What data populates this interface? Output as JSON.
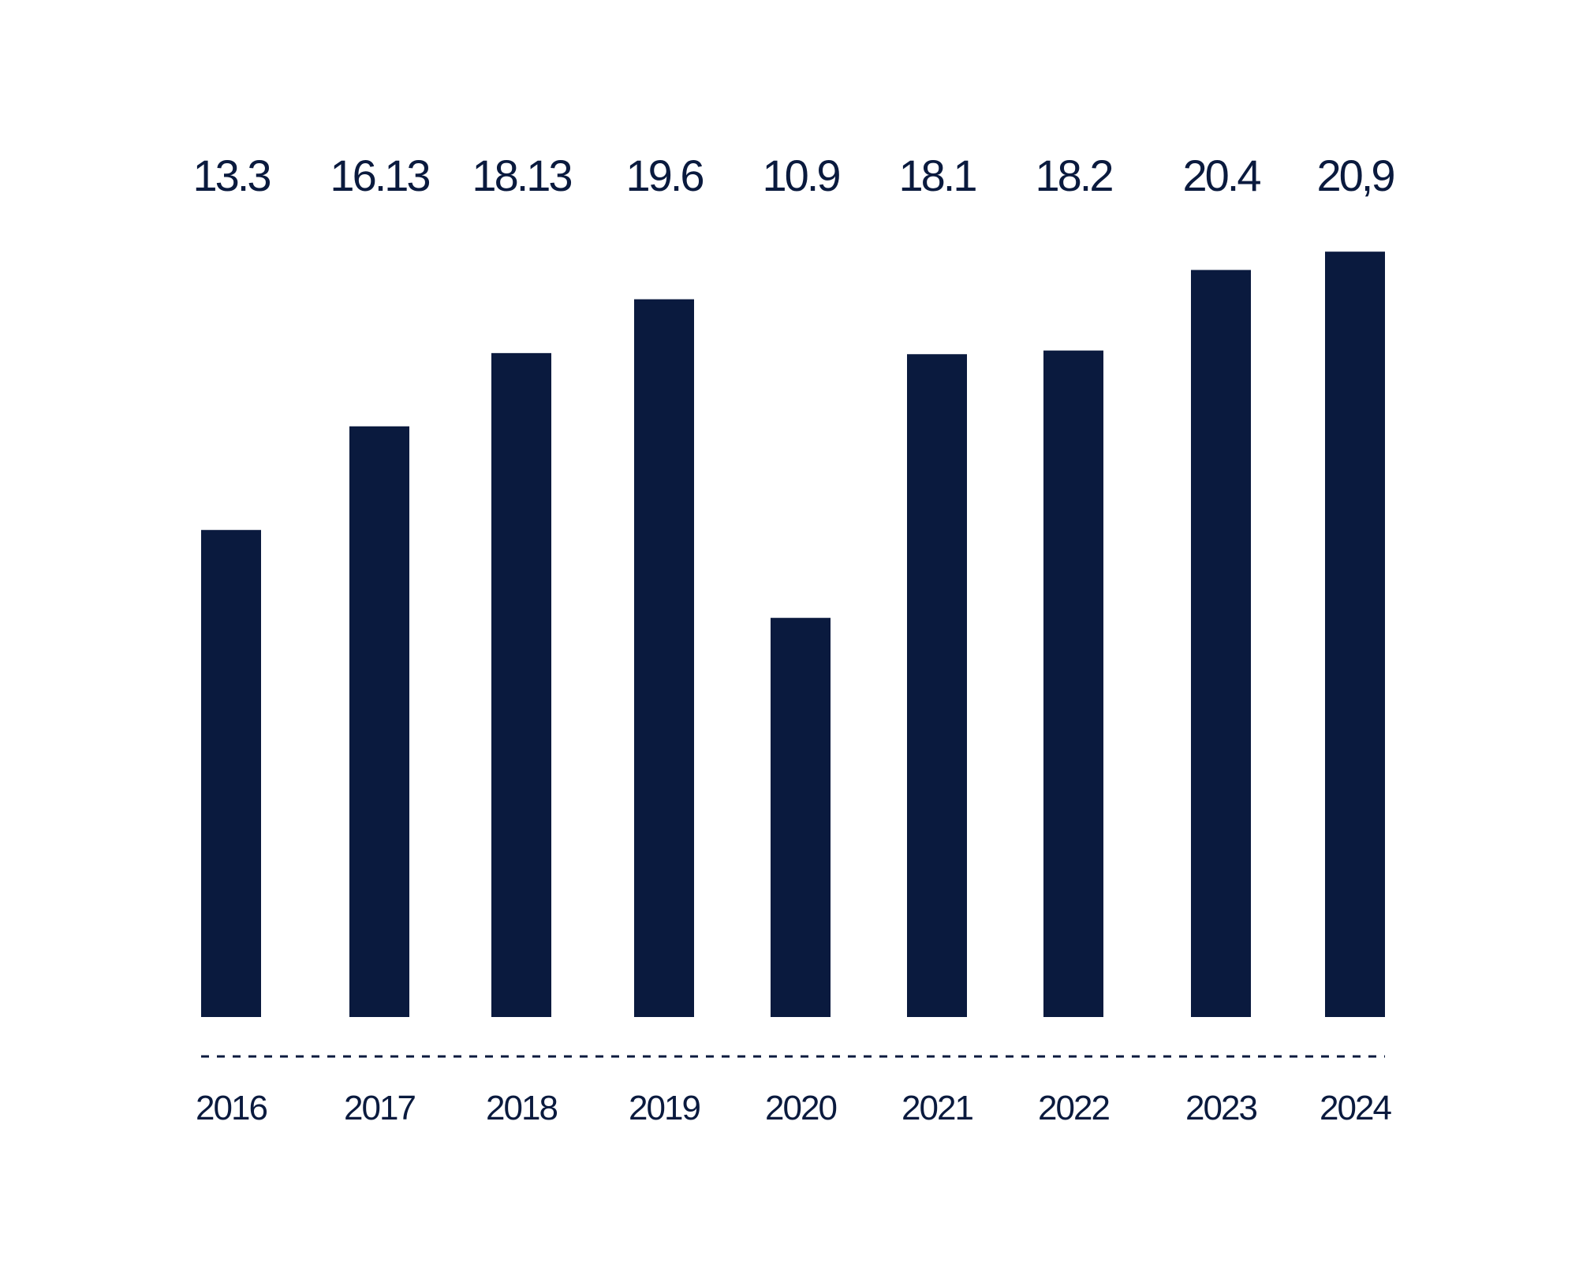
{
  "chart_data": {
    "type": "bar",
    "categories": [
      "2016",
      "2017",
      "2018",
      "2019",
      "2020",
      "2021",
      "2022",
      "2023",
      "2024"
    ],
    "values": [
      13.3,
      16.13,
      18.13,
      19.6,
      10.9,
      18.1,
      18.2,
      20.4,
      20.9
    ],
    "value_labels": [
      "13.3",
      "16.13",
      "18.13",
      "19.6",
      "10.9",
      "18.1",
      "18.2",
      "20.4",
      "20,9"
    ],
    "title": "",
    "xlabel": "",
    "ylabel": "",
    "ylim": [
      0,
      22
    ],
    "grid": false,
    "baseline_style": "dashed",
    "bar_color": "#0a1a3e",
    "text_color": "#0a1a3e"
  }
}
